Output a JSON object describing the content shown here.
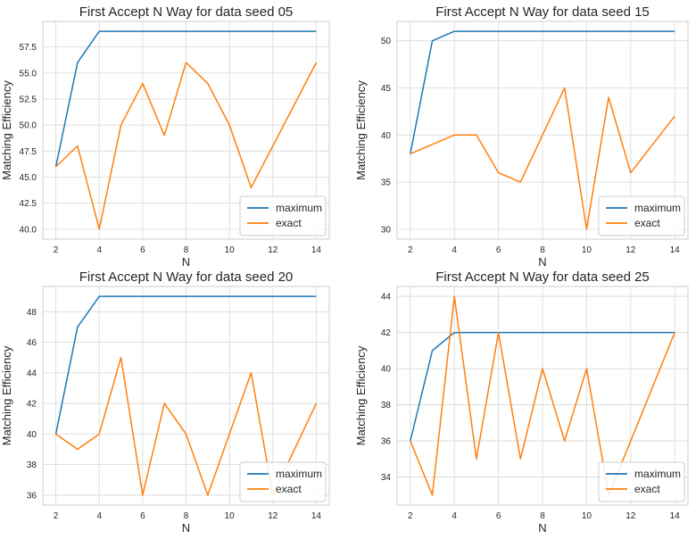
{
  "chart_data": [
    {
      "type": "line",
      "title": "First Accept N Way for data seed 05",
      "xlabel": "N",
      "ylabel": "Matching Efficiency",
      "x": [
        2,
        3,
        4,
        5,
        6,
        7,
        8,
        9,
        10,
        11,
        12,
        13,
        14
      ],
      "xticks": [
        "2",
        "4",
        "6",
        "8",
        "10",
        "12",
        "14"
      ],
      "yticks": [
        "40.0",
        "42.5",
        "45.0",
        "47.5",
        "50.0",
        "52.5",
        "55.0",
        "57.5"
      ],
      "xlim": [
        1.4,
        14.6
      ],
      "ylim": [
        39.05,
        59.95
      ],
      "grid": true,
      "legend_position": "lower-right",
      "series": [
        {
          "name": "maximum",
          "color": "#1f77b4",
          "values": [
            46,
            56,
            59,
            59,
            59,
            59,
            59,
            59,
            59,
            59,
            59,
            59,
            59
          ]
        },
        {
          "name": "exact",
          "color": "#ff7f0e",
          "values": [
            46,
            48,
            40,
            50,
            54,
            49,
            56,
            54,
            50,
            44,
            48,
            52,
            56
          ]
        }
      ]
    },
    {
      "type": "line",
      "title": "First Accept N Way for data seed 15",
      "xlabel": "N",
      "ylabel": "Matching Efficiency",
      "x": [
        2,
        3,
        4,
        5,
        6,
        7,
        8,
        9,
        10,
        11,
        12,
        13,
        14
      ],
      "xticks": [
        "2",
        "4",
        "6",
        "8",
        "10",
        "12",
        "14"
      ],
      "yticks": [
        "30",
        "35",
        "40",
        "45",
        "50"
      ],
      "xlim": [
        1.4,
        14.6
      ],
      "ylim": [
        28.95,
        52.05
      ],
      "grid": true,
      "legend_position": "lower-right",
      "series": [
        {
          "name": "maximum",
          "color": "#1f77b4",
          "values": [
            38,
            50,
            51,
            51,
            51,
            51,
            51,
            51,
            51,
            51,
            51,
            51,
            51
          ]
        },
        {
          "name": "exact",
          "color": "#ff7f0e",
          "values": [
            38,
            39,
            40,
            40,
            36,
            35,
            40,
            45,
            30,
            44,
            36,
            39,
            42
          ]
        }
      ]
    },
    {
      "type": "line",
      "title": "First Accept N Way for data seed 20",
      "xlabel": "N",
      "ylabel": "Matching Efficiency",
      "x": [
        2,
        3,
        4,
        5,
        6,
        7,
        8,
        9,
        10,
        11,
        12,
        13,
        14
      ],
      "xticks": [
        "2",
        "4",
        "6",
        "8",
        "10",
        "12",
        "14"
      ],
      "yticks": [
        "36",
        "38",
        "40",
        "42",
        "44",
        "46",
        "48"
      ],
      "xlim": [
        1.4,
        14.6
      ],
      "ylim": [
        35.35,
        49.65
      ],
      "grid": true,
      "legend_position": "lower-right",
      "series": [
        {
          "name": "maximum",
          "color": "#1f77b4",
          "values": [
            40,
            47,
            49,
            49,
            49,
            49,
            49,
            49,
            49,
            49,
            49,
            49,
            49
          ]
        },
        {
          "name": "exact",
          "color": "#ff7f0e",
          "values": [
            40,
            39,
            40,
            45,
            36,
            42,
            40,
            36,
            40,
            44,
            36,
            39,
            42
          ]
        }
      ]
    },
    {
      "type": "line",
      "title": "First Accept N Way for data seed 25",
      "xlabel": "N",
      "ylabel": "Matching Efficiency",
      "x": [
        2,
        3,
        4,
        5,
        6,
        7,
        8,
        9,
        10,
        11,
        12,
        13,
        14
      ],
      "xticks": [
        "2",
        "4",
        "6",
        "8",
        "10",
        "12",
        "14"
      ],
      "yticks": [
        "34",
        "36",
        "38",
        "40",
        "42",
        "44"
      ],
      "xlim": [
        1.4,
        14.6
      ],
      "ylim": [
        32.45,
        44.55
      ],
      "grid": true,
      "legend_position": "lower-right",
      "series": [
        {
          "name": "maximum",
          "color": "#1f77b4",
          "values": [
            36,
            41,
            42,
            42,
            42,
            42,
            42,
            42,
            42,
            42,
            42,
            42,
            42
          ]
        },
        {
          "name": "exact",
          "color": "#ff7f0e",
          "values": [
            36,
            33,
            44,
            35,
            42,
            35,
            40,
            36,
            40,
            33,
            36,
            39,
            42
          ]
        }
      ]
    }
  ]
}
